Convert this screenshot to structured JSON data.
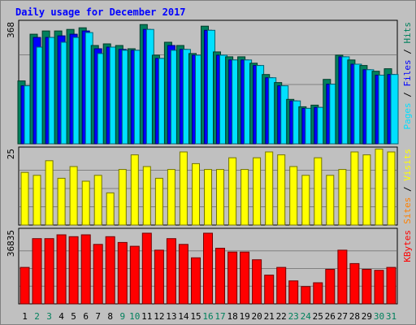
{
  "chart_data": {
    "type": "bar",
    "title": "Daily usage for December 2017",
    "categories": [
      "1",
      "2",
      "3",
      "4",
      "5",
      "6",
      "7",
      "8",
      "9",
      "10",
      "11",
      "12",
      "13",
      "14",
      "15",
      "16",
      "17",
      "18",
      "19",
      "20",
      "21",
      "22",
      "23",
      "24",
      "25",
      "26",
      "27",
      "28",
      "29",
      "30",
      "31"
    ],
    "weekend_days": [
      "2",
      "3",
      "9",
      "10",
      "16",
      "17",
      "23",
      "24",
      "30",
      "31"
    ],
    "panels": [
      {
        "id": "hits",
        "max_label": "368",
        "ylim": [
          0,
          368
        ],
        "legend": [
          "Pages",
          "Files",
          "Hits"
        ],
        "series": [
          {
            "name": "Hits",
            "color": "#00805c",
            "values": [
              195,
              340,
              350,
              350,
              355,
              360,
              305,
              310,
              305,
              295,
              370,
              275,
              315,
              305,
              280,
              365,
              285,
              270,
              270,
              250,
              215,
              190,
              138,
              115,
              120,
              200,
              275,
              260,
              243,
              225,
              233
            ]
          },
          {
            "name": "Files",
            "color": "#0000ff",
            "values": [
              180,
              330,
              330,
              335,
              340,
              350,
              295,
              300,
              293,
              290,
              355,
              265,
              305,
              293,
              275,
              352,
              275,
              260,
              260,
              243,
              205,
              180,
              133,
              110,
              113,
              185,
              270,
              247,
              230,
              213,
              215
            ]
          },
          {
            "name": "Pages",
            "color": "#00e0ff",
            "values": [
              180,
              300,
              330,
              315,
              330,
              345,
              280,
              300,
              290,
              290,
              355,
              265,
              290,
              293,
              275,
              352,
              275,
              260,
              260,
              243,
              205,
              180,
              133,
              110,
              113,
              185,
              270,
              247,
              230,
              213,
              215
            ]
          }
        ]
      },
      {
        "id": "visits",
        "max_label": "25",
        "ylim": [
          0,
          25
        ],
        "legend": [
          "Sites",
          "Visits"
        ],
        "series": [
          {
            "name": "Sites",
            "color": "#ff8000",
            "values": [
              1,
              1,
              1,
              1,
              1,
              1,
              1,
              1,
              1,
              1,
              1,
              1,
              1,
              1,
              1,
              1,
              1,
              1,
              1,
              1,
              1,
              1,
              1,
              1,
              1,
              1,
              1,
              1,
              1,
              1,
              1
            ]
          },
          {
            "name": "Visits",
            "color": "#ffff00",
            "values": [
              18,
              17,
              22,
              16,
              20,
              15,
              17,
              11,
              19,
              24,
              20,
              16,
              19,
              25,
              21,
              19,
              19,
              23,
              19,
              23,
              25,
              24,
              20,
              17,
              23,
              17,
              19,
              25,
              24,
              26,
              25
            ]
          }
        ]
      },
      {
        "id": "kbytes",
        "max_label": "36835",
        "ylim": [
          0,
          36835
        ],
        "legend": [
          "KBytes"
        ],
        "series": [
          {
            "name": "KBytes",
            "color": "#ff0000",
            "values": [
              19000,
              34000,
              34000,
              36000,
              35000,
              36000,
              31000,
              35000,
              32000,
              30000,
              36835,
              28000,
              34000,
              31000,
              24000,
              36835,
              29000,
              27000,
              27000,
              23000,
              15000,
              19000,
              12000,
              9000,
              11000,
              18000,
              28000,
              21000,
              18000,
              17500,
              19000
            ]
          }
        ]
      }
    ],
    "colors": {
      "background": "#c0c0c0",
      "grid": "#808080",
      "title": "#0000ff",
      "weekday_label": "#000000",
      "weekend_label": "#00805c"
    }
  }
}
